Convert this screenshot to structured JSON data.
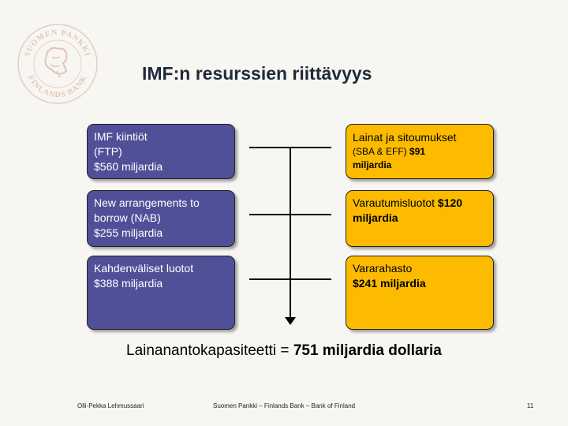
{
  "title": "IMF:n resurssien riittävyys",
  "resources": [
    {
      "lines": [
        "IMF kiintiöt",
        "(FTP)"
      ],
      "amount": "$560 miljardia"
    },
    {
      "lines": [
        "New arrangements to",
        "borrow (NAB)"
      ],
      "amount": "$255 miljardia"
    },
    {
      "lines": [
        "Kahdenväliset luotot"
      ],
      "amount": "$388 miljardia"
    }
  ],
  "uses": [
    {
      "text1": "Lainat ja sitoumukset",
      "text2": "(SBA & EFF) ",
      "amount": "$91",
      "amount2": "miljardia"
    },
    {
      "text1": "Varautumisluotot ",
      "amount": "$120",
      "amount2": "miljardia"
    },
    {
      "text1": "Vararahasto",
      "amount": "$241 miljardia"
    }
  ],
  "summary": {
    "label": "Lainanantokapasiteetti = ",
    "value": "751 miljardia dollaria"
  },
  "footer": {
    "author": "Olli-Pekka Lehmussaari",
    "bank": "Suomen Pankki – Finlands Bank – Bank of Finland",
    "page": "11"
  },
  "colors": {
    "blue_box": "#505098",
    "yellow_box": "#fdbb00",
    "background": "#f8f6f2"
  }
}
